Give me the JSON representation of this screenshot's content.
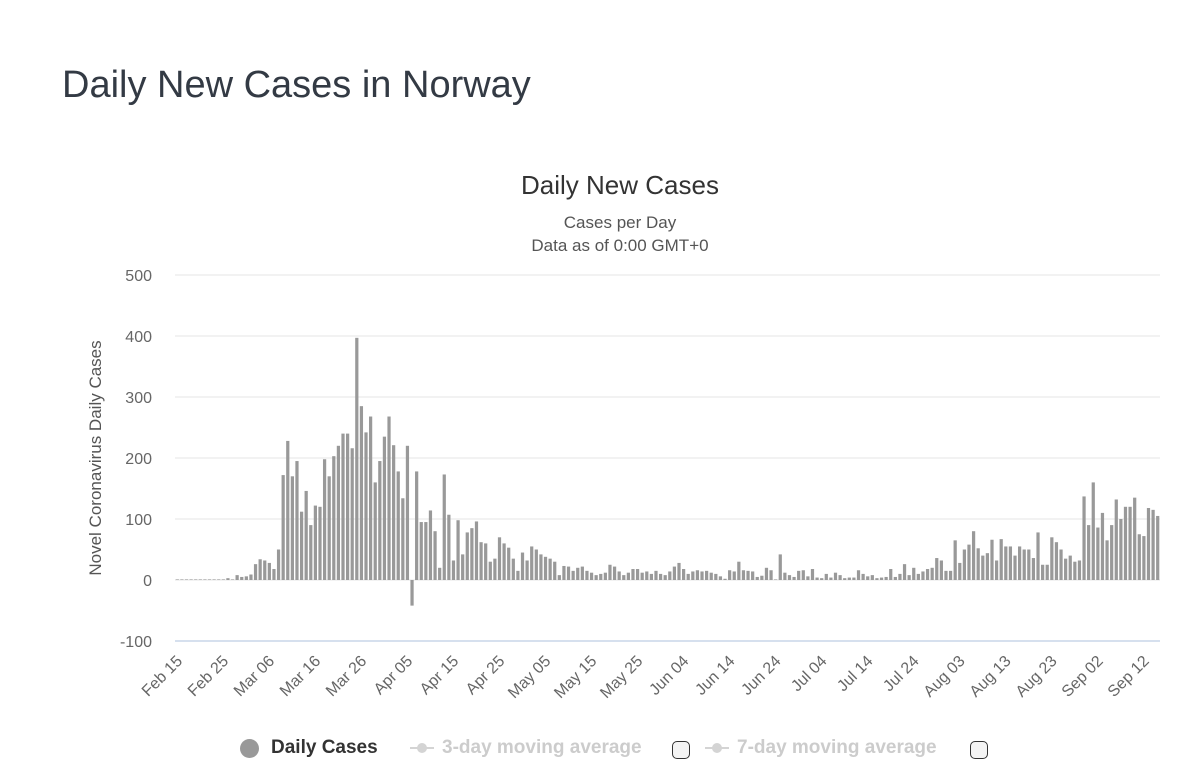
{
  "page": {
    "title": "Daily New Cases in Norway"
  },
  "chart_data": {
    "type": "bar",
    "title": "Daily New Cases",
    "subtitle_lines": [
      "Cases per Day",
      "Data as of 0:00 GMT+0"
    ],
    "ylabel": "Novel Coronavirus Daily Cases",
    "xlabel": "",
    "ylim": [
      -100,
      500
    ],
    "yticks": [
      500,
      400,
      300,
      200,
      100,
      0,
      -100
    ],
    "grid": true,
    "start_date": "2020-02-15",
    "x_tick_labels": [
      "Feb 15",
      "Feb 25",
      "Mar 06",
      "Mar 16",
      "Mar 26",
      "Apr 05",
      "Apr 15",
      "Apr 25",
      "May 05",
      "May 15",
      "May 25",
      "Jun 04",
      "Jun 14",
      "Jun 24",
      "Jul 04",
      "Jul 14",
      "Jul 24",
      "Aug 03",
      "Aug 13",
      "Aug 23",
      "Sep 02",
      "Sep 12"
    ],
    "series": [
      {
        "name": "Daily Cases",
        "color": "#999999",
        "values": [
          0,
          0,
          0,
          0,
          0,
          0,
          0,
          0,
          0,
          0,
          0,
          3,
          0,
          8,
          5,
          6,
          9,
          26,
          34,
          32,
          28,
          18,
          50,
          172,
          228,
          170,
          195,
          112,
          146,
          90,
          122,
          120,
          198,
          170,
          203,
          220,
          240,
          240,
          216,
          397,
          285,
          242,
          268,
          160,
          195,
          235,
          268,
          221,
          178,
          134,
          220,
          -42,
          178,
          95,
          95,
          114,
          80,
          20,
          173,
          107,
          32,
          98,
          42,
          78,
          85,
          96,
          62,
          60,
          30,
          35,
          70,
          60,
          53,
          35,
          15,
          45,
          32,
          55,
          50,
          42,
          38,
          35,
          30,
          8,
          23,
          22,
          15,
          20,
          22,
          15,
          12,
          8,
          10,
          12,
          25,
          22,
          14,
          8,
          12,
          18,
          18,
          12,
          14,
          10,
          15,
          10,
          8,
          14,
          22,
          28,
          18,
          10,
          14,
          16,
          14,
          15,
          12,
          10,
          6,
          2,
          16,
          14,
          30,
          16,
          15,
          14,
          5,
          7,
          20,
          16,
          0,
          42,
          12,
          8,
          5,
          15,
          16,
          6,
          18,
          4,
          3,
          10,
          4,
          12,
          8,
          3,
          4,
          4,
          16,
          10,
          6,
          8,
          3,
          4,
          5,
          18,
          5,
          10,
          26,
          8,
          20,
          10,
          14,
          18,
          20,
          36,
          32,
          15,
          15,
          65,
          28,
          50,
          58,
          80,
          52,
          40,
          44,
          66,
          32,
          67,
          55,
          55,
          40,
          55,
          50,
          50,
          36,
          78,
          25,
          25,
          70,
          62,
          50,
          35,
          40,
          30,
          32,
          137,
          90,
          160,
          86,
          110,
          65,
          90,
          132,
          100,
          120,
          120,
          135,
          75,
          72,
          118,
          115,
          105
        ]
      }
    ],
    "legend": [
      {
        "label": "Daily Cases",
        "active": true
      },
      {
        "label": "3-day moving average",
        "active": false
      },
      {
        "label": "7-day moving average",
        "active": false
      }
    ]
  }
}
